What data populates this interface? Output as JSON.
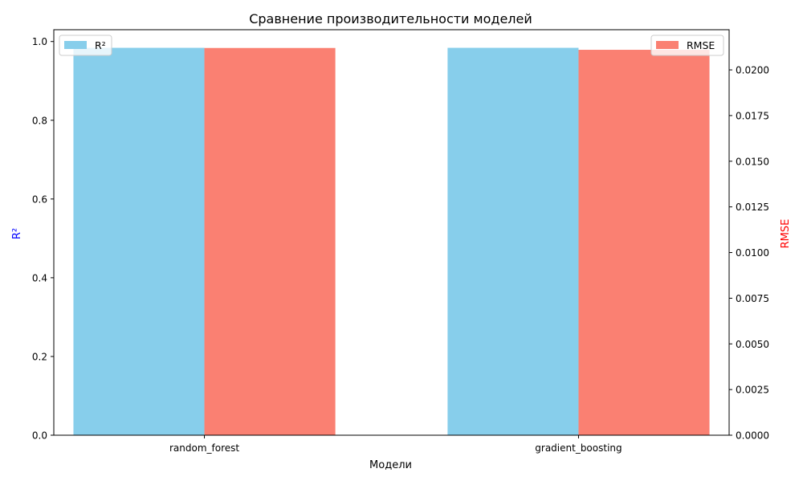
{
  "chart_data": {
    "type": "bar",
    "title": "Сравнение производительности моделей",
    "xlabel": "Модели",
    "categories": [
      "random_forest",
      "gradient_boosting"
    ],
    "y_left": {
      "label": "R²",
      "label_color": "#0000ff",
      "ylim": [
        0,
        1.03
      ],
      "ticks": [
        0.0,
        0.2,
        0.4,
        0.6,
        0.8,
        1.0
      ],
      "tick_labels": [
        "0.0",
        "0.2",
        "0.4",
        "0.6",
        "0.8",
        "1.0"
      ]
    },
    "y_right": {
      "label": "RMSE",
      "label_color": "#ff0000",
      "ylim": [
        0,
        0.0222
      ],
      "ticks": [
        0.0,
        0.0025,
        0.005,
        0.0075,
        0.01,
        0.0125,
        0.015,
        0.0175,
        0.02
      ],
      "tick_labels": [
        "0.0000",
        "0.0025",
        "0.0050",
        "0.0075",
        "0.0100",
        "0.0125",
        "0.0150",
        "0.0175",
        "0.0200"
      ]
    },
    "series": [
      {
        "name": "R²",
        "axis": "left",
        "color": "#87ceeb",
        "values": [
          0.984,
          0.984
        ]
      },
      {
        "name": "RMSE",
        "axis": "right",
        "color": "#fa8072",
        "values": [
          0.0212,
          0.0211
        ]
      }
    ],
    "legend": [
      {
        "name": "R²",
        "color": "#87ceeb",
        "placement": "upper-left"
      },
      {
        "name": "RMSE",
        "color": "#fa8072",
        "placement": "upper-right"
      }
    ],
    "grid": false
  }
}
